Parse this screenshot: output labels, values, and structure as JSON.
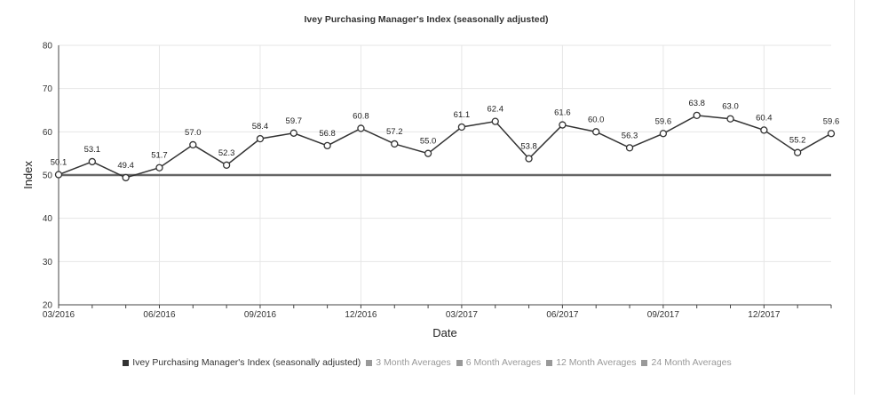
{
  "chart_data": {
    "type": "line",
    "title": "Ivey Purchasing Manager's Index (seasonally adjusted)",
    "xlabel": "Date",
    "ylabel": "Index",
    "ylim": [
      20,
      80
    ],
    "yticks": [
      20,
      30,
      40,
      50,
      60,
      70,
      80
    ],
    "x": [
      "03/2016",
      "04/2016",
      "05/2016",
      "06/2016",
      "07/2016",
      "08/2016",
      "09/2016",
      "10/2016",
      "11/2016",
      "12/2016",
      "01/2017",
      "02/2017",
      "03/2017",
      "04/2017",
      "05/2017",
      "06/2017",
      "07/2017",
      "08/2017",
      "09/2017",
      "10/2017",
      "11/2017",
      "12/2017",
      "01/2018",
      "02/2018"
    ],
    "xtick_labels": [
      "03/2016",
      "06/2016",
      "09/2016",
      "12/2016",
      "03/2017",
      "06/2017",
      "09/2017",
      "12/2017"
    ],
    "series": [
      {
        "name": "Ivey Purchasing Manager's Index (seasonally adjusted)",
        "values": [
          50.1,
          53.1,
          49.4,
          51.7,
          57.0,
          52.3,
          58.4,
          59.7,
          56.8,
          60.8,
          57.2,
          55.0,
          61.1,
          62.4,
          53.8,
          61.6,
          60.0,
          56.3,
          59.6,
          63.8,
          63.0,
          60.4,
          55.2,
          59.6
        ],
        "labels": [
          "50.1",
          "53.1",
          "49.4",
          "51.7",
          "57.0",
          "52.3",
          "58.4",
          "59.7",
          "56.8",
          "60.8",
          "57.2",
          "55.0",
          "61.1",
          "62.4",
          "53.8",
          "61.6",
          "60.0",
          "56.3",
          "59.6",
          "63.8",
          "63.0",
          "60.4",
          "55.2",
          "59.6"
        ],
        "color": "#333333"
      }
    ],
    "reference_line": {
      "value": 50,
      "color": "#666666"
    },
    "grid": true,
    "legend_position": "bottom",
    "legend": [
      {
        "label": "Ivey Purchasing Manager's Index (seasonally adjusted)",
        "color": "#333333",
        "active": true
      },
      {
        "label": "3 Month Averages",
        "color": "#999999",
        "active": false
      },
      {
        "label": "6 Month Averages",
        "color": "#999999",
        "active": false
      },
      {
        "label": "12 Month Averages",
        "color": "#999999",
        "active": false
      },
      {
        "label": "24 Month Averages",
        "color": "#999999",
        "active": false
      }
    ]
  }
}
